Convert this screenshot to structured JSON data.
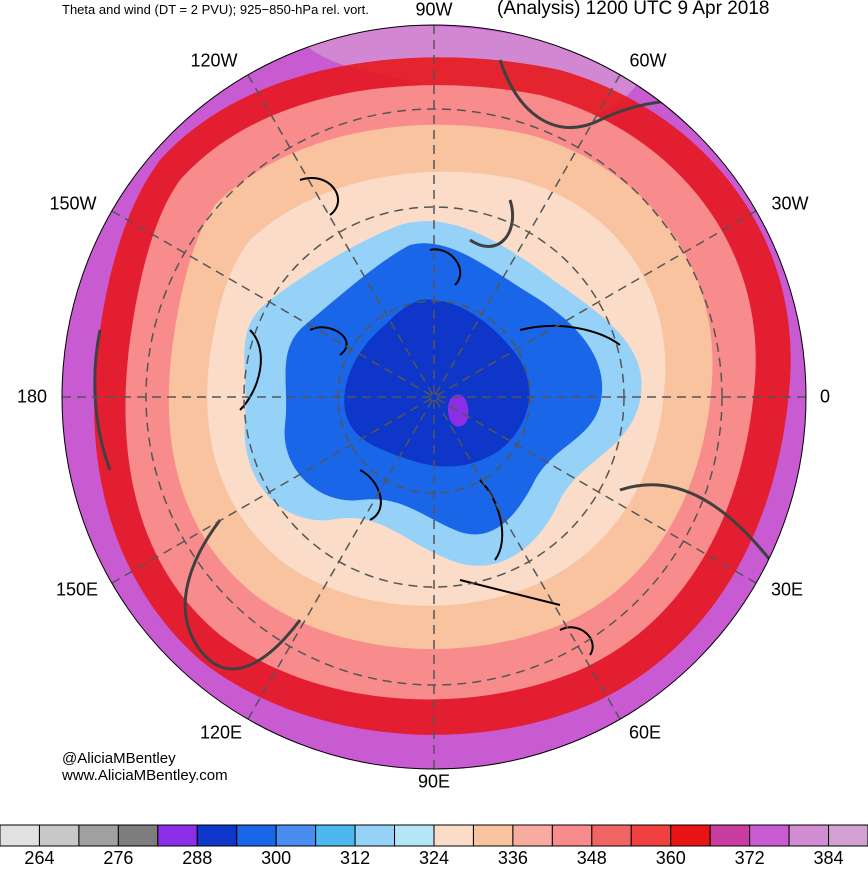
{
  "header": {
    "left_title": "Theta and wind (DT = 2 PVU); 925−850-hPa rel. vort.",
    "right_title": "(Analysis) 1200 UTC 9 Apr 2018"
  },
  "longitude_labels": [
    "90W",
    "60W",
    "30W",
    "0",
    "30E",
    "60E",
    "90E",
    "120E",
    "150E",
    "180",
    "150W",
    "120W"
  ],
  "credit": {
    "handle": "@AliciaMBentley",
    "site": "www.AliciaMBentley.com"
  },
  "colorbar": {
    "colors": [
      "#e1e1e1",
      "#c8c8c8",
      "#a0a0a0",
      "#7d7d7d",
      "#8c2ee8",
      "#0e36c8",
      "#1a66e8",
      "#4a8df0",
      "#4bb8f0",
      "#96d2f8",
      "#b4e6f5",
      "#fadcc8",
      "#fac3a0",
      "#f8aca0",
      "#f88c8c",
      "#f06464",
      "#f04040",
      "#e81414",
      "#c83ca0",
      "#c85ad2",
      "#d28cd2",
      "#d2a0d2"
    ],
    "tick_labels": [
      "264",
      "276",
      "288",
      "300",
      "312",
      "324",
      "336",
      "348",
      "360",
      "372",
      "384"
    ]
  },
  "map": {
    "colors": {
      "outer": "#c85ad2",
      "outer_light": "#d28cd2",
      "red": "#e81414",
      "pink": "#f88c8c",
      "salmon": "#fac3a0",
      "peach": "#fadcc8",
      "lightblue": "#96d2f8",
      "blue": "#1a66e8",
      "darkblue": "#0e36c8",
      "coast": "#404040",
      "vort": "#000000"
    }
  }
}
